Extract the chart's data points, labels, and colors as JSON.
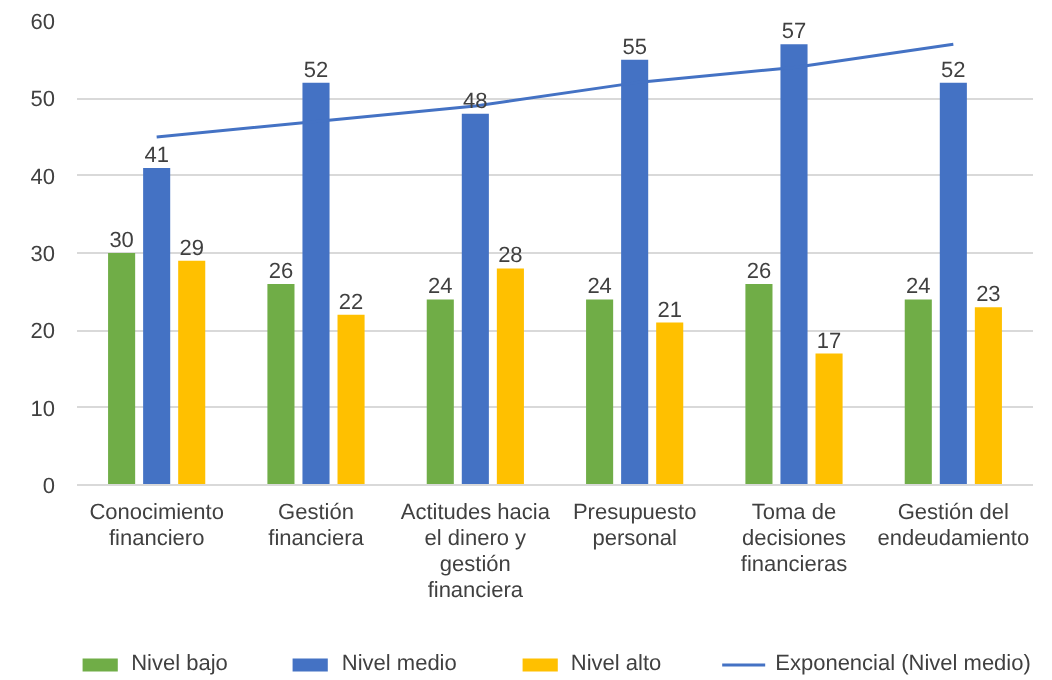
{
  "chart_data": {
    "type": "bar",
    "categories": [
      "Conocimiento financiero",
      "Gestión financiera",
      "Actitudes hacia el dinero y gestión financiera",
      "Presupuesto personal",
      "Toma de decisiones financieras",
      "Gestión del endeudamiento"
    ],
    "series": [
      {
        "name": "Nivel bajo",
        "color": "#70ad47",
        "values": [
          30,
          26,
          24,
          24,
          26,
          24
        ],
        "value_labels": [
          "30",
          "26",
          "24",
          "24",
          "26",
          "24"
        ]
      },
      {
        "name": "Nivel medio",
        "color": "#4472c4",
        "values": [
          41,
          52,
          48,
          55,
          57,
          52
        ],
        "value_labels": [
          "41",
          "52",
          "48",
          "55",
          "57",
          "52"
        ]
      },
      {
        "name": "Nivel alto",
        "color": "#ffc000",
        "values": [
          29,
          22,
          28,
          21,
          17,
          23
        ],
        "value_labels": [
          "29",
          "22",
          "28",
          "21",
          "17",
          "23"
        ]
      },
      {
        "name": "Exponencial (Nivel medio)",
        "type": "line",
        "color": "#4472c4",
        "values": [
          45,
          47,
          49,
          52,
          54,
          57
        ]
      }
    ],
    "ylim": [
      0,
      60
    ],
    "yticks": [
      0,
      10,
      20,
      30,
      40,
      50,
      60
    ],
    "grid": "y",
    "legend": "bottom"
  }
}
